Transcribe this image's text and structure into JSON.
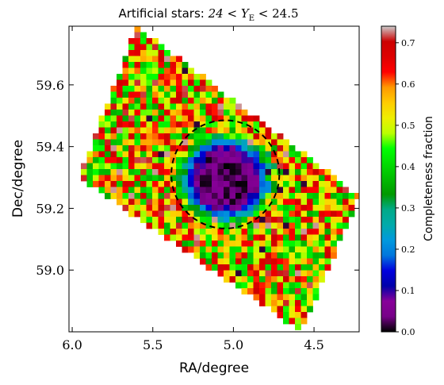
{
  "chart_data": {
    "type": "heatmap",
    "title_prefix": "Artificial stars: ",
    "title_math": "24 < Y",
    "title_sub": "E",
    "title_suffix": " < 24.5",
    "xlabel": "RA/degree",
    "ylabel": "Dec/degree",
    "xlim": [
      6.02,
      4.22
    ],
    "ylim": [
      58.8,
      59.79
    ],
    "x_ticks": [
      6.0,
      5.5,
      5.0,
      4.5
    ],
    "x_tick_labels": [
      "6.0",
      "5.5",
      "5.0",
      "4.5"
    ],
    "y_ticks": [
      59.0,
      59.2,
      59.4,
      59.6
    ],
    "y_tick_labels": [
      "59.0",
      "59.2",
      "59.4",
      "59.6"
    ],
    "colorbar": {
      "label": "Completeness fraction",
      "range": [
        0.0,
        0.74
      ],
      "ticks": [
        0.0,
        0.1,
        0.2,
        0.3,
        0.4,
        0.5,
        0.6,
        0.7
      ],
      "tick_labels": [
        "0.0",
        "0.1",
        "0.2",
        "0.3",
        "0.4",
        "0.5",
        "0.6",
        "0.7"
      ],
      "colormap": "nipy_spectral"
    },
    "field_corners": [
      [
        5.6,
        59.79
      ],
      [
        4.22,
        59.24
      ],
      [
        4.58,
        58.8
      ],
      [
        5.96,
        59.3
      ]
    ],
    "hole_center": [
      5.05,
      59.295
    ],
    "circle": {
      "center": [
        5.05,
        59.31
      ],
      "radius_deg": 0.175,
      "style": "dashed"
    },
    "approximate_values": {
      "field_outer_range": [
        0.35,
        0.72
      ],
      "ring_range": [
        0.15,
        0.35
      ],
      "hole_center_range": [
        0.0,
        0.08
      ]
    },
    "grid": false
  }
}
